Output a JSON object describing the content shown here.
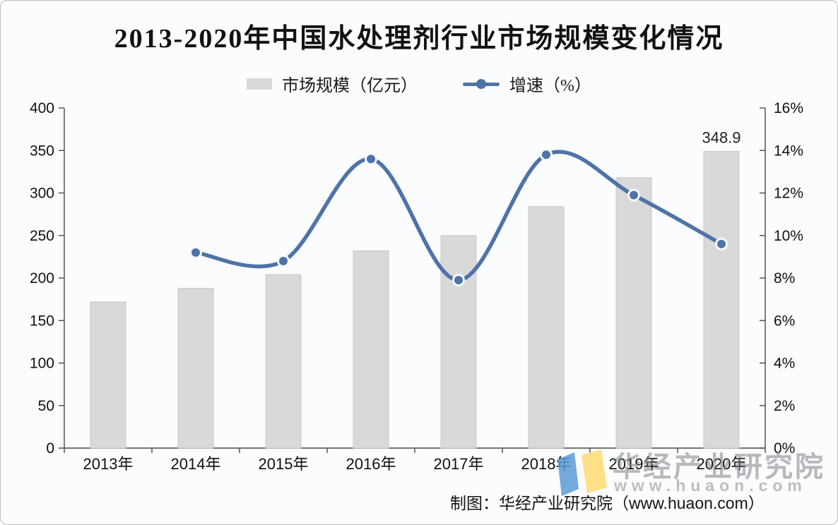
{
  "title": "2013-2020年中国水处理剂行业市场规模变化情况",
  "legend": [
    {
      "label": "市场规模（亿元）",
      "marker": "bar-swatch",
      "color": "#d9d9d9"
    },
    {
      "label": "增速（%）",
      "marker": "line-dot",
      "color": "#4e73a8"
    }
  ],
  "chart_data": {
    "type": "bar+line combo",
    "categories": [
      "2013年",
      "2014年",
      "2015年",
      "2016年",
      "2017年",
      "2018年",
      "2019年",
      "2020年"
    ],
    "series": [
      {
        "name": "市场规模（亿元）",
        "type": "bar",
        "axis": "left",
        "color": "#d9d9d9",
        "values": [
          172,
          188,
          204,
          232,
          250,
          284,
          318,
          348.9
        ]
      },
      {
        "name": "增速（%）",
        "type": "line",
        "axis": "right",
        "color": "#4e73a8",
        "values": [
          null,
          9.2,
          8.8,
          13.6,
          7.9,
          13.8,
          11.9,
          9.6
        ]
      }
    ],
    "left_axis": {
      "min": 0,
      "max": 400,
      "step": 50,
      "ticks": [
        "400",
        "350",
        "300",
        "250",
        "200",
        "150",
        "100",
        "50",
        "0"
      ]
    },
    "right_axis": {
      "min": 0,
      "max": 16,
      "step": 2,
      "ticks": [
        "16%",
        "14%",
        "12%",
        "10%",
        "8%",
        "6%",
        "4%",
        "2%",
        "0%"
      ]
    },
    "data_labels": [
      {
        "category": "2020年",
        "series": "市场规模（亿元）",
        "text": "348.9"
      }
    ],
    "grid": false,
    "legend_position": "top"
  },
  "watermark": {
    "line1": "华经产业研究院",
    "line2": "www.huaon.com",
    "logo_colors": {
      "blue": "#5b9bd5",
      "yellow": "#ffdd7a"
    }
  },
  "footer_note": "制图：华经产业研究院（www.huaon.com）"
}
